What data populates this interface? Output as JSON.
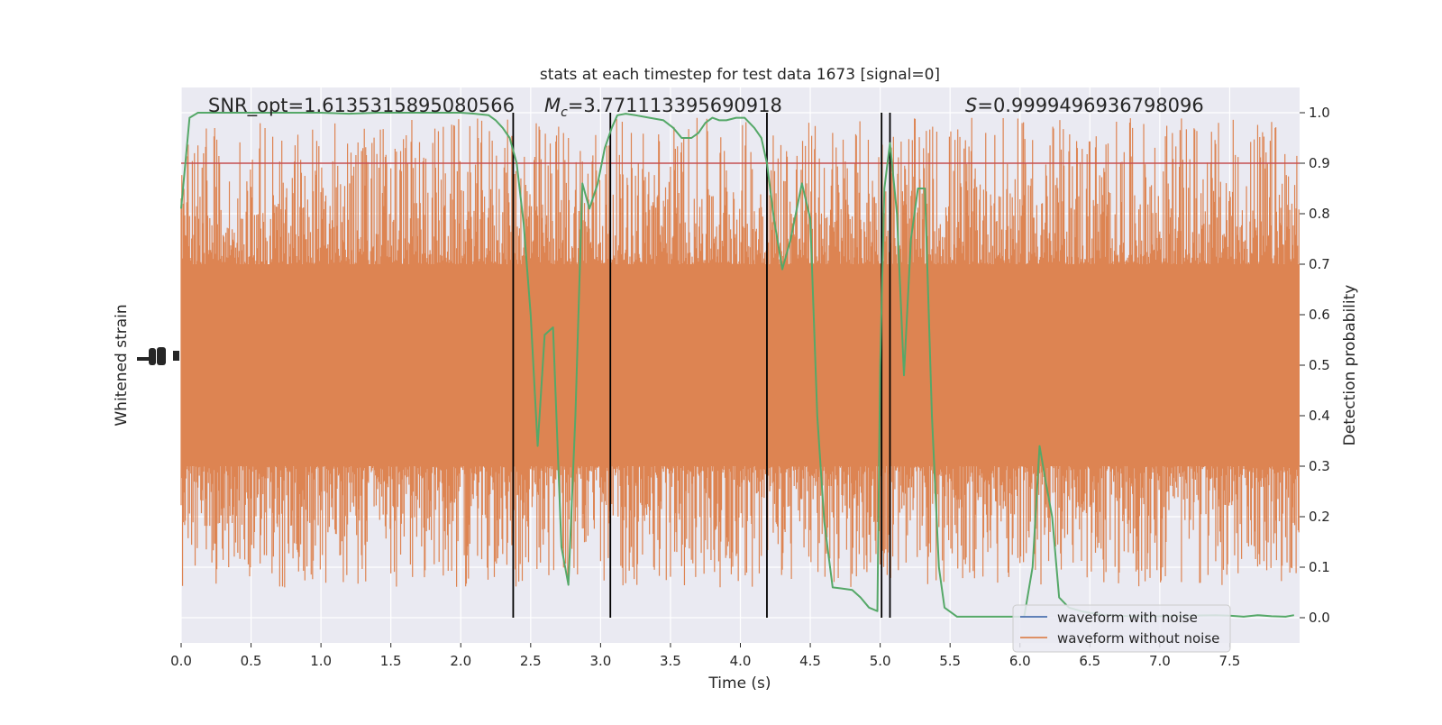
{
  "chart_data": {
    "type": "line",
    "title": "stats at each timestep for test data 1673 [signal=0]",
    "xlabel": "Time (s)",
    "ylabel_left": "Whitened strain",
    "ylabel_right": "Detection probability",
    "xlim": [
      0,
      8.0
    ],
    "xticks": [
      0.0,
      0.5,
      1.0,
      1.5,
      2.0,
      2.5,
      3.0,
      3.5,
      4.0,
      4.5,
      5.0,
      5.5,
      6.0,
      6.5,
      7.0,
      7.5
    ],
    "xtick_labels": [
      "0.0",
      "0.5",
      "1.0",
      "1.5",
      "2.0",
      "2.5",
      "3.0",
      "3.5",
      "4.0",
      "4.5",
      "5.0",
      "5.5",
      "6.0",
      "6.5",
      "7.0",
      "7.5"
    ],
    "ylim_right": [
      -0.05,
      1.05
    ],
    "yticks_right": [
      0.0,
      0.1,
      0.2,
      0.3,
      0.4,
      0.5,
      0.6,
      0.7,
      0.8,
      0.9,
      1.0
    ],
    "ytick_labels_right": [
      "0.0",
      "0.1",
      "0.2",
      "0.3",
      "0.4",
      "0.5",
      "0.6",
      "0.7",
      "0.8",
      "0.9",
      "1.0"
    ],
    "grid": true,
    "legend_placement": "lower-right",
    "annotations": {
      "snr": "SNR_opt=1.6135315895080566",
      "mc_symbol": "M",
      "mc_sub": "c",
      "mc_value": "=3.771113395690918",
      "s_symbol": "S",
      "s_value": "=0.9999496936798096"
    },
    "threshold": {
      "y": 0.9,
      "color": "#c44e52"
    },
    "vertical_lines": [
      2.375,
      3.07,
      4.19,
      5.01,
      5.07
    ],
    "series": [
      {
        "name": "waveform with noise",
        "color": "#4c72b0",
        "values": []
      },
      {
        "name": "waveform without noise",
        "color": "#dd8452",
        "band": [
          0.3,
          0.7
        ],
        "spike_range": [
          0.06,
          0.99
        ]
      },
      {
        "name": "",
        "color": "#55a868",
        "x": [
          0.0,
          0.06,
          0.12,
          0.2,
          0.4,
          0.6,
          0.8,
          1.0,
          1.2,
          1.4,
          1.6,
          1.8,
          2.0,
          2.1,
          2.2,
          2.25,
          2.3,
          2.35,
          2.4,
          2.45,
          2.5,
          2.55,
          2.6,
          2.66,
          2.72,
          2.77,
          2.82,
          2.87,
          2.92,
          2.98,
          3.03,
          3.08,
          3.12,
          3.18,
          3.25,
          3.35,
          3.45,
          3.52,
          3.58,
          3.65,
          3.7,
          3.75,
          3.8,
          3.85,
          3.9,
          3.97,
          4.03,
          4.1,
          4.15,
          4.19,
          4.24,
          4.3,
          4.36,
          4.44,
          4.5,
          4.55,
          4.6,
          4.66,
          4.72,
          4.8,
          4.86,
          4.92,
          4.98,
          5.0,
          5.03,
          5.07,
          5.12,
          5.17,
          5.22,
          5.27,
          5.32,
          5.37,
          5.42,
          5.46,
          5.5,
          5.55,
          5.7,
          5.9,
          6.03,
          6.09,
          6.14,
          6.19,
          6.23,
          6.28,
          6.35,
          6.45,
          6.6,
          6.8,
          7.0,
          7.2,
          7.4,
          7.5,
          7.6,
          7.7,
          7.8,
          7.9,
          7.96
        ],
        "y": [
          0.81,
          0.99,
          1.0,
          1.0,
          1.0,
          1.0,
          1.0,
          1.0,
          0.998,
          1.0,
          1.0,
          1.0,
          1.0,
          0.998,
          0.995,
          0.985,
          0.97,
          0.95,
          0.9,
          0.78,
          0.6,
          0.34,
          0.56,
          0.575,
          0.14,
          0.065,
          0.4,
          0.86,
          0.81,
          0.86,
          0.93,
          0.97,
          0.995,
          0.998,
          0.995,
          0.99,
          0.985,
          0.97,
          0.95,
          0.95,
          0.96,
          0.98,
          0.99,
          0.985,
          0.985,
          0.99,
          0.99,
          0.97,
          0.95,
          0.9,
          0.79,
          0.69,
          0.75,
          0.86,
          0.79,
          0.4,
          0.19,
          0.06,
          0.058,
          0.055,
          0.04,
          0.02,
          0.013,
          0.5,
          0.85,
          0.94,
          0.8,
          0.48,
          0.75,
          0.85,
          0.85,
          0.4,
          0.1,
          0.02,
          0.012,
          0.002,
          0.002,
          0.002,
          0.002,
          0.1,
          0.34,
          0.26,
          0.2,
          0.04,
          0.02,
          0.012,
          0.005,
          0.003,
          0.003,
          0.004,
          0.005,
          0.004,
          0.002,
          0.005,
          0.003,
          0.002,
          0.005
        ]
      }
    ]
  }
}
